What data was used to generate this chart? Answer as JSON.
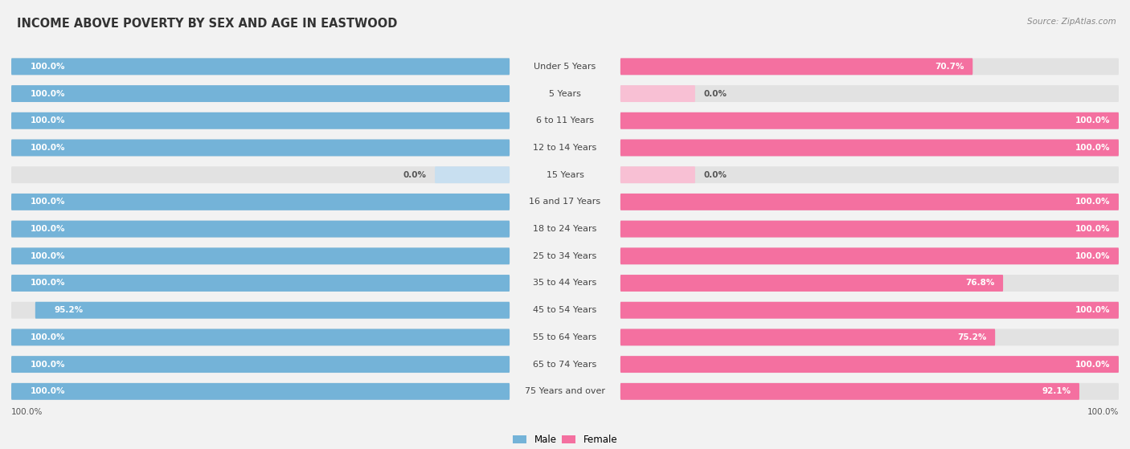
{
  "title": "INCOME ABOVE POVERTY BY SEX AND AGE IN EASTWOOD",
  "source": "Source: ZipAtlas.com",
  "categories": [
    "Under 5 Years",
    "5 Years",
    "6 to 11 Years",
    "12 to 14 Years",
    "15 Years",
    "16 and 17 Years",
    "18 to 24 Years",
    "25 to 34 Years",
    "35 to 44 Years",
    "45 to 54 Years",
    "55 to 64 Years",
    "65 to 74 Years",
    "75 Years and over"
  ],
  "male_values": [
    100.0,
    100.0,
    100.0,
    100.0,
    0.0,
    100.0,
    100.0,
    100.0,
    100.0,
    95.2,
    100.0,
    100.0,
    100.0
  ],
  "female_values": [
    70.7,
    0.0,
    100.0,
    100.0,
    0.0,
    100.0,
    100.0,
    100.0,
    76.8,
    100.0,
    75.2,
    100.0,
    92.1
  ],
  "male_color": "#74b3d8",
  "female_color": "#f470a0",
  "male_color_light": "#c8dff0",
  "female_color_light": "#f8c0d4",
  "background_color": "#f2f2f2",
  "bar_bg_color": "#e2e2e2",
  "title_fontsize": 10.5,
  "label_fontsize": 8.0,
  "value_fontsize": 7.5,
  "legend_fontsize": 8.5,
  "source_fontsize": 7.5
}
